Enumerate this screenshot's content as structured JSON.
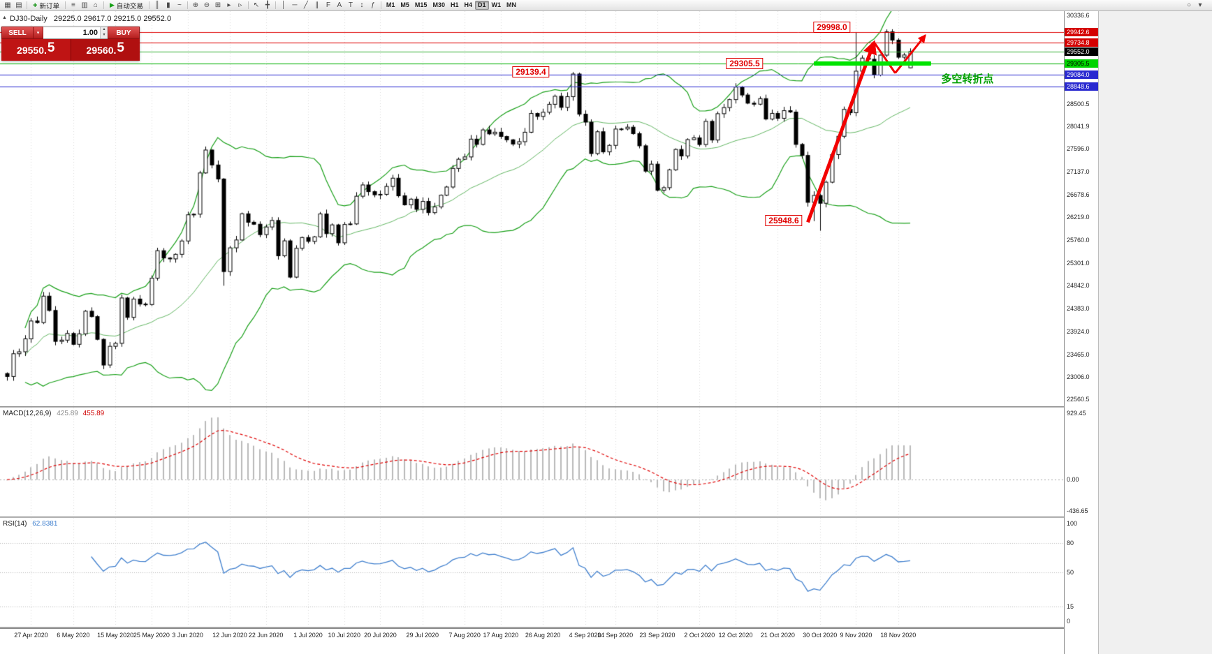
{
  "toolbar": {
    "left_icons": [
      {
        "name": "chart-window-icon",
        "glyph": "▦"
      },
      {
        "name": "profiles-icon",
        "glyph": "▤"
      }
    ],
    "new_order": {
      "label": "新订单",
      "icon_glyph": "+"
    },
    "mid_icons": [
      {
        "name": "market-watch-icon",
        "glyph": "≡"
      },
      {
        "name": "data-window-icon",
        "glyph": "▥"
      },
      {
        "name": "navigator-icon",
        "glyph": "⌂"
      }
    ],
    "auto_trading": {
      "label": "自动交易",
      "icon_glyph": "▶"
    },
    "chart_type_icons": [
      {
        "name": "bar-chart-icon",
        "glyph": "║"
      },
      {
        "name": "candlestick-chart-icon",
        "glyph": "▮"
      },
      {
        "name": "line-chart-icon",
        "glyph": "~"
      }
    ],
    "zoom_icons": [
      {
        "name": "zoom-in-icon",
        "glyph": "⊕"
      },
      {
        "name": "zoom-out-icon",
        "glyph": "⊖"
      },
      {
        "name": "tile-windows-icon",
        "glyph": "⊞"
      },
      {
        "name": "auto-scroll-icon",
        "glyph": "▸"
      },
      {
        "name": "chart-shift-icon",
        "glyph": "▹"
      }
    ],
    "cursor_icons": [
      {
        "name": "cursor-icon",
        "glyph": "↖"
      },
      {
        "name": "crosshair-icon",
        "glyph": "╋"
      }
    ],
    "object_icons": [
      {
        "name": "vertical-line-icon",
        "glyph": "│"
      },
      {
        "name": "horizontal-line-icon",
        "glyph": "─"
      },
      {
        "name": "trendline-icon",
        "glyph": "╱"
      },
      {
        "name": "channel-icon",
        "glyph": "∥"
      },
      {
        "name": "fibonacci-icon",
        "glyph": "F"
      },
      {
        "name": "text-icon",
        "glyph": "A"
      },
      {
        "name": "text-label-icon",
        "glyph": "T"
      },
      {
        "name": "arrows-tool-icon",
        "glyph": "↕"
      },
      {
        "name": "indicators-icon",
        "glyph": "ƒ"
      }
    ],
    "timeframes": {
      "items": [
        "M1",
        "M5",
        "M15",
        "M30",
        "H1",
        "H4",
        "D1",
        "W1",
        "MN"
      ],
      "active": "D1"
    },
    "right_icons": [
      {
        "name": "search-icon",
        "glyph": "○"
      },
      {
        "name": "quick-menu-icon",
        "glyph": "▾"
      }
    ]
  },
  "chart_header": {
    "collapse_glyph": "▲",
    "symbol": "DJ30-Daily",
    "ohlc": "29225.0 29617.0 29215.0 29552.0"
  },
  "trade_panel": {
    "sell_label": "SELL",
    "buy_label": "BUY",
    "sell_caret": "▾",
    "volume": "1.00",
    "spin_up": "▴",
    "spin_down": "▾",
    "sell_price_main": "29550.",
    "sell_price_pip": "5",
    "buy_price_main": "29560.",
    "buy_price_pip": "5"
  },
  "indicators": {
    "macd": {
      "label": "MACD(12,26,9)",
      "value_main": "425.89",
      "value_signal": "455.89",
      "axis_labels": [
        "929.45",
        "0.00",
        "-436.65"
      ],
      "axis_values": [
        929.45,
        0,
        -436.65
      ],
      "histogram_color": "#b9b9b9",
      "signal_color": "#e00000"
    },
    "rsi": {
      "label": "RSI(14)",
      "value": "62.8381",
      "axis_labels": [
        "100",
        "80",
        "50",
        "15",
        "0"
      ],
      "axis_values": [
        100,
        80,
        50,
        15,
        0
      ],
      "levels": [
        80,
        50,
        15
      ],
      "line_color": "#3f7fce"
    }
  },
  "price_axis": {
    "ticks": [
      [
        "30336.6",
        30336.6
      ],
      [
        "28500.5",
        28500.5
      ],
      [
        "28041.9",
        28041.9
      ],
      [
        "27596.0",
        27596.0
      ],
      [
        "27137.0",
        27137.0
      ],
      [
        "26678.6",
        26678.6
      ],
      [
        "26219.0",
        26219.0
      ],
      [
        "25760.0",
        25760.0
      ],
      [
        "25301.0",
        25301.0
      ],
      [
        "24842.0",
        24842.0
      ],
      [
        "24383.0",
        24383.0
      ],
      [
        "23924.0",
        23924.0
      ],
      [
        "23465.0",
        23465.0
      ],
      [
        "23006.0",
        23006.0
      ],
      [
        "22560.5",
        22560.5
      ]
    ]
  },
  "chart_data": {
    "type": "candlestick",
    "title": "DJ30-Daily",
    "symbol": "DJ30",
    "timeframe": "Daily",
    "price_max": 30336.6,
    "price_min": 22560.5,
    "closes": [
      23018,
      23476,
      23515,
      23775,
      24134,
      24102,
      24634,
      24346,
      23724,
      23749,
      23883,
      23665,
      23876,
      24331,
      24222,
      23765,
      23248,
      23625,
      23685,
      24597,
      24207,
      24576,
      24474,
      24465,
      24995,
      25548,
      25401,
      25383,
      25475,
      25743,
      26270,
      26282,
      27111,
      27572,
      27272,
      26990,
      25128,
      25605,
      25763,
      26290,
      26120,
      26080,
      25871,
      26025,
      26156,
      25446,
      25746,
      25016,
      25596,
      25813,
      25735,
      25827,
      26287,
      25890,
      26067,
      25706,
      26075,
      26086,
      26643,
      26870,
      26735,
      26672,
      26681,
      26840,
      27006,
      26652,
      26470,
      26584,
      26379,
      26539,
      26313,
      26428,
      26664,
      26828,
      27202,
      27387,
      27433,
      27791,
      27686,
      27977,
      27897,
      27931,
      27845,
      27778,
      27693,
      27740,
      27930,
      28308,
      28248,
      28332,
      28492,
      28654,
      28430,
      28646,
      29101,
      28293,
      28133,
      27501,
      27940,
      27535,
      27666,
      27994,
      27996,
      28032,
      27902,
      27657,
      27148,
      27288,
      26763,
      26815,
      27174,
      27584,
      27453,
      27782,
      27817,
      27683,
      28149,
      27773,
      28303,
      28426,
      28587,
      28838,
      28679,
      28514,
      28494,
      28606,
      28195,
      28309,
      28210,
      28364,
      28336,
      27685,
      27463,
      26520,
      26659,
      26502,
      26925,
      27480,
      27848,
      28390,
      28323,
      29158,
      29421,
      29398,
      29080,
      29480,
      29950,
      29783,
      29438,
      29483,
      29552
    ],
    "overrides": {
      "high": {
        "94": 29139.4,
        "141": 29933,
        "146": 29998.0
      },
      "low": {
        "36": 24843,
        "134": 26143,
        "135": 25948.6
      },
      "last_ohlc": [
        29225.0,
        29617.0,
        29215.0,
        29552.0
      ]
    },
    "bollinger": {
      "period": 20,
      "deviation": 2,
      "color": "#18a018"
    },
    "macd_params": [
      12,
      26,
      9
    ],
    "rsi_period": 14,
    "x_labels": [
      [
        "27 Apr 2020",
        4
      ],
      [
        "6 May 2020",
        11
      ],
      [
        "15 May 2020",
        18
      ],
      [
        "25 May 2020",
        24
      ],
      [
        "3 Jun 2020",
        30
      ],
      [
        "12 Jun 2020",
        37
      ],
      [
        "22 Jun 2020",
        43
      ],
      [
        "1 Jul 2020",
        50
      ],
      [
        "10 Jul 2020",
        56
      ],
      [
        "20 Jul 2020",
        62
      ],
      [
        "29 Jul 2020",
        69
      ],
      [
        "7 Aug 2020",
        76
      ],
      [
        "17 Aug 2020",
        82
      ],
      [
        "26 Aug 2020",
        89
      ],
      [
        "4 Sep 2020",
        96
      ],
      [
        "14 Sep 2020",
        101
      ],
      [
        "23 Sep 2020",
        108
      ],
      [
        "2 Oct 2020",
        115
      ],
      [
        "12 Oct 2020",
        121
      ],
      [
        "21 Oct 2020",
        128
      ],
      [
        "30 Oct 2020",
        135
      ],
      [
        "9 Nov 2020",
        141
      ],
      [
        "18 Nov 2020",
        148
      ]
    ],
    "hlines": [
      {
        "price": 29942.6,
        "line_color": "#e00000",
        "dash": false,
        "label": "29942.6",
        "label_bg": "#d40000",
        "label_fg": "#ffffff"
      },
      {
        "price": 29734.8,
        "line_color": "#e00000",
        "dash": false,
        "label": "29734.8",
        "label_bg": "#d40000",
        "label_fg": "#ffffff"
      },
      {
        "price": 29552.0,
        "line_color": "#35b135",
        "dash": false,
        "label": "29552.0",
        "label_bg": "#000000",
        "label_fg": "#ffffff"
      },
      {
        "price": 29305.5,
        "line_color": "#00b000",
        "dash": false,
        "label": "29305.5",
        "label_bg": "#00d400",
        "label_fg": "#000000"
      },
      {
        "price": 29084.0,
        "line_color": "#2a2ad0",
        "dash": false,
        "label": "29084.0",
        "label_bg": "#2a2ad0",
        "label_fg": "#ffffff"
      },
      {
        "price": 28848.6,
        "line_color": "#2a2ad0",
        "dash": false,
        "label": "28848.6",
        "label_bg": "#2a2ad0",
        "label_fg": "#ffffff"
      }
    ],
    "support_bar": {
      "price": 29305.5,
      "from_index": 134,
      "to_index": 153.5,
      "color": "#00e400",
      "thickness": 6
    },
    "annotations": {
      "arrow_color": "#f20000",
      "flags": [
        {
          "text": "29998.0",
          "index": 137,
          "price": 30040
        },
        {
          "text": "29305.5",
          "index": 122.5,
          "price": 29310
        },
        {
          "text": "29139.4",
          "index": 87,
          "price": 29150
        },
        {
          "text": "25948.6",
          "index": 129,
          "price": 26150
        }
      ],
      "note": {
        "text": "多空转折点",
        "index": 159.5,
        "price": 29030,
        "color": "#00a000"
      },
      "arrows": [
        {
          "kind": "arrow",
          "from": [
            133,
            26120
          ],
          "to": [
            144,
            29740
          ],
          "width": 5
        },
        {
          "kind": "line",
          "from": [
            144,
            29740
          ],
          "to": [
            147.5,
            29120
          ],
          "width": 3
        },
        {
          "kind": "arrow",
          "from": [
            147.5,
            29120
          ],
          "to": [
            152.5,
            29880
          ],
          "width": 3
        }
      ]
    }
  }
}
